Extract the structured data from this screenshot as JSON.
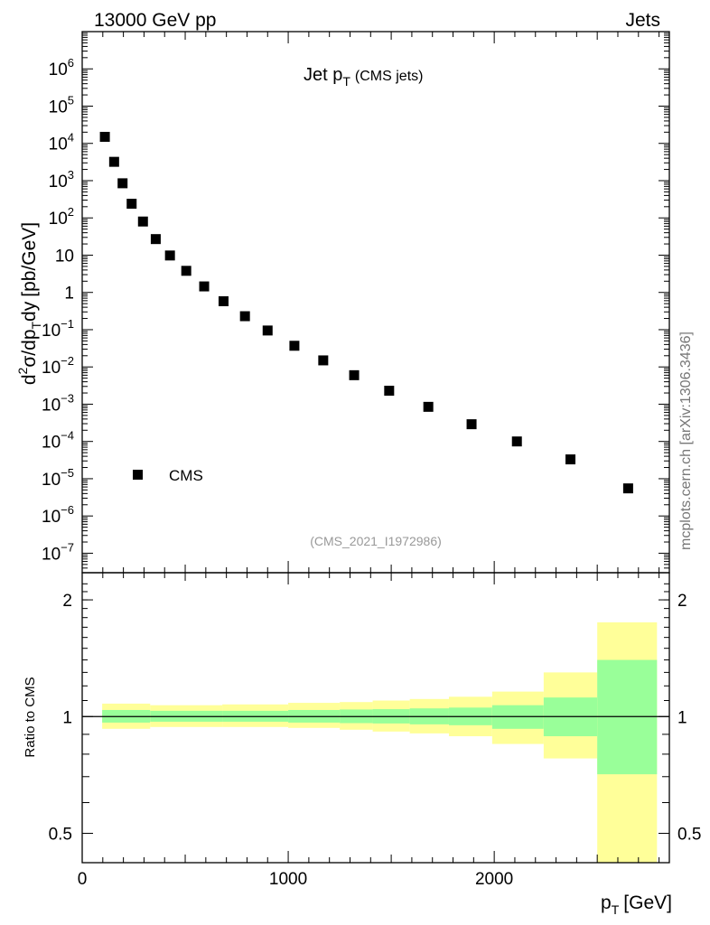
{
  "header": {
    "left": "13000 GeV pp",
    "right": "Jets"
  },
  "side_label": "mcplots.cern.ch [arXiv:1306.3436]",
  "watermark": "(CMS_2021_I1972986)",
  "chart_data": [
    {
      "type": "scatter",
      "title_main": "Jet p",
      "title_sub": "T",
      "title_suffix": "(CMS jets)",
      "ylabel": {
        "d": "d",
        "two": "2",
        "sigma": "σ/dp",
        "T": "T",
        "dy": "dy",
        "units": "[pb/GeV]"
      },
      "yscale": "log",
      "ylim": [
        3e-08,
        10000000.0
      ],
      "xlim": [
        0,
        2850
      ],
      "legend": {
        "label": "CMS",
        "position": "bottom-left"
      },
      "y_tick_labels": [
        {
          "value": 1000000.0,
          "base": "10",
          "exp": "6"
        },
        {
          "value": 100000.0,
          "base": "10",
          "exp": "5"
        },
        {
          "value": 10000.0,
          "base": "10",
          "exp": "4"
        },
        {
          "value": 1000.0,
          "base": "10",
          "exp": "3"
        },
        {
          "value": 100.0,
          "base": "10",
          "exp": "2"
        },
        {
          "value": 10,
          "base": "10",
          "exp": ""
        },
        {
          "value": 1,
          "base": "1",
          "exp": ""
        },
        {
          "value": 0.1,
          "base": "10",
          "exp": "−1"
        },
        {
          "value": 0.01,
          "base": "10",
          "exp": "−2"
        },
        {
          "value": 0.001,
          "base": "10",
          "exp": "−3"
        },
        {
          "value": 0.0001,
          "base": "10",
          "exp": "−4"
        },
        {
          "value": 1e-05,
          "base": "10",
          "exp": "−5"
        },
        {
          "value": 1e-06,
          "base": "10",
          "exp": "−6"
        },
        {
          "value": 1e-07,
          "base": "10",
          "exp": "−7"
        }
      ],
      "series": [
        {
          "name": "CMS",
          "x": [
            110,
            155,
            196,
            240,
            295,
            357,
            426,
            505,
            592,
            686,
            790,
            900,
            1030,
            1170,
            1320,
            1490,
            1680,
            1890,
            2110,
            2370,
            2650
          ],
          "y": [
            15000,
            3200,
            850,
            240,
            80,
            27,
            9.8,
            3.8,
            1.45,
            0.58,
            0.23,
            0.095,
            0.037,
            0.015,
            0.006,
            0.0023,
            0.00085,
            0.00029,
            0.0001,
            3.3e-05,
            5.5e-06
          ]
        }
      ]
    },
    {
      "type": "area",
      "ylabel": "Ratio to CMS",
      "xlabel_main": "p",
      "xlabel_sub": "T",
      "xlabel_units": "[GeV]",
      "yscale": "log",
      "ylim": [
        0.42,
        2.35
      ],
      "xlim": [
        0,
        2850
      ],
      "x_tick_labels": [
        "0",
        "1000",
        "2000"
      ],
      "x_tick_values": [
        0,
        1000,
        2000
      ],
      "y_tick_labels": [
        "0.5",
        "1",
        "2"
      ],
      "y_tick_values": [
        0.5,
        1,
        2
      ],
      "reference_line": 1,
      "bins": [
        {
          "lo": 97,
          "hi": 330,
          "stat_lo": 0.965,
          "stat_hi": 1.04,
          "tot_lo": 0.93,
          "tot_hi": 1.08
        },
        {
          "lo": 330,
          "hi": 680,
          "stat_lo": 0.97,
          "stat_hi": 1.035,
          "tot_lo": 0.94,
          "tot_hi": 1.07
        },
        {
          "lo": 680,
          "hi": 1000,
          "stat_lo": 0.97,
          "stat_hi": 1.035,
          "tot_lo": 0.94,
          "tot_hi": 1.075
        },
        {
          "lo": 1000,
          "hi": 1250,
          "stat_lo": 0.965,
          "stat_hi": 1.04,
          "tot_lo": 0.935,
          "tot_hi": 1.085
        },
        {
          "lo": 1250,
          "hi": 1410,
          "stat_lo": 0.962,
          "stat_hi": 1.043,
          "tot_lo": 0.925,
          "tot_hi": 1.09
        },
        {
          "lo": 1410,
          "hi": 1590,
          "stat_lo": 0.96,
          "stat_hi": 1.045,
          "tot_lo": 0.915,
          "tot_hi": 1.1
        },
        {
          "lo": 1590,
          "hi": 1780,
          "stat_lo": 0.955,
          "stat_hi": 1.05,
          "tot_lo": 0.905,
          "tot_hi": 1.11
        },
        {
          "lo": 1780,
          "hi": 1990,
          "stat_lo": 0.95,
          "stat_hi": 1.055,
          "tot_lo": 0.89,
          "tot_hi": 1.125
        },
        {
          "lo": 1990,
          "hi": 2240,
          "stat_lo": 0.93,
          "stat_hi": 1.07,
          "tot_lo": 0.85,
          "tot_hi": 1.16
        },
        {
          "lo": 2240,
          "hi": 2500,
          "stat_lo": 0.89,
          "stat_hi": 1.12,
          "tot_lo": 0.78,
          "tot_hi": 1.3
        },
        {
          "lo": 2500,
          "hi": 2790,
          "stat_lo": 0.71,
          "stat_hi": 1.4,
          "tot_lo": 0.35,
          "tot_hi": 1.75
        }
      ]
    }
  ],
  "colors": {
    "stat_band": "#99ff99",
    "total_band": "#ffff99",
    "marker": "#000000",
    "watermark": "#999999",
    "side_label": "#777777"
  }
}
